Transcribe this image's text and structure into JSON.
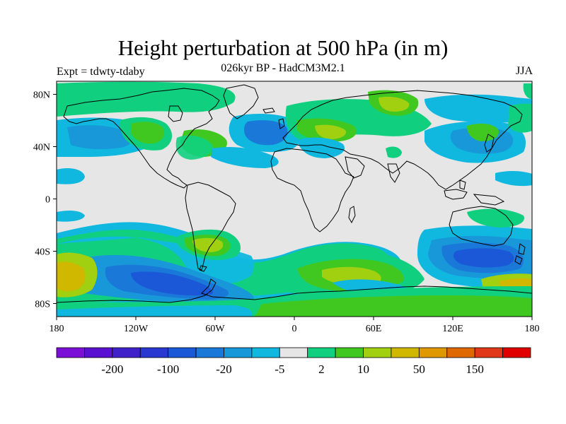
{
  "title": "Height perturbation at 500 hPa (in m)",
  "subtitle": "026kyr BP - HadCM3M2.1",
  "left_label": "Expt = tdwty-tdaby",
  "right_label": "JJA",
  "map": {
    "projection": "cylindrical equidistant",
    "lon_range": [
      -180,
      180
    ],
    "lat_range": [
      -90,
      90
    ],
    "lat_ticks": [
      "80N",
      "40N",
      "0",
      "40S",
      "80S"
    ],
    "lon_ticks": [
      "180",
      "120W",
      "60W",
      "0",
      "60E",
      "120E",
      "180"
    ],
    "coastlines": true,
    "zero_band_color": "#e6e6e6"
  },
  "colorbar": {
    "colors": [
      "#7a10d8",
      "#5a10d0",
      "#4020c8",
      "#2838d0",
      "#1a58d8",
      "#1a78d8",
      "#1898d8",
      "#10b8e0",
      "#e6e6e6",
      "#10d080",
      "#40c820",
      "#a0d010",
      "#d0b800",
      "#e09800",
      "#e06800",
      "#e03818",
      "#e00000"
    ],
    "labels": [
      "-200",
      "-100",
      "-20",
      "-5",
      "2",
      "10",
      "50",
      "150"
    ]
  }
}
